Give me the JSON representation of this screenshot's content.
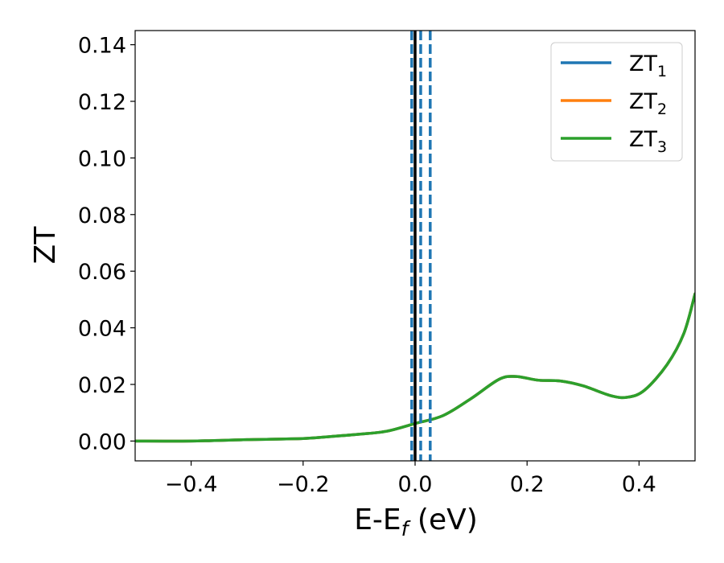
{
  "chart_data": {
    "type": "line",
    "title": "",
    "xlabel": {
      "main": "E-E",
      "sub": "f",
      "unit": " (eV)"
    },
    "ylabel": "ZT",
    "xlim": [
      -0.5,
      0.5
    ],
    "ylim": [
      -0.007,
      0.145
    ],
    "xticks": [
      -0.4,
      -0.2,
      0.0,
      0.2,
      0.4
    ],
    "xtick_labels": [
      "−0.4",
      "−0.2",
      "0.0",
      "0.2",
      "0.4"
    ],
    "yticks": [
      0.0,
      0.02,
      0.04,
      0.06,
      0.08,
      0.1,
      0.12,
      0.14
    ],
    "ytick_labels": [
      "0.00",
      "0.02",
      "0.04",
      "0.06",
      "0.08",
      "0.10",
      "0.12",
      "0.14"
    ],
    "grid": false,
    "legend_position": "top-right",
    "series": [
      {
        "name": "ZT",
        "sub": "1",
        "color": "#1f77b4",
        "points": [
          [
            -0.5,
            0.0
          ],
          [
            -0.4,
            0.0
          ],
          [
            -0.3,
            0.0005
          ],
          [
            -0.2,
            0.0009
          ],
          [
            -0.15,
            0.0016
          ],
          [
            -0.1,
            0.0024
          ],
          [
            -0.05,
            0.0035
          ],
          [
            0.0,
            0.0062
          ],
          [
            0.05,
            0.009
          ],
          [
            0.1,
            0.015
          ],
          [
            0.15,
            0.0218
          ],
          [
            0.18,
            0.0228
          ],
          [
            0.22,
            0.0215
          ],
          [
            0.26,
            0.0212
          ],
          [
            0.3,
            0.0195
          ],
          [
            0.35,
            0.016
          ],
          [
            0.38,
            0.0155
          ],
          [
            0.41,
            0.018
          ],
          [
            0.45,
            0.027
          ],
          [
            0.48,
            0.038
          ],
          [
            0.5,
            0.052
          ]
        ]
      },
      {
        "name": "ZT",
        "sub": "2",
        "color": "#ff7f0e",
        "points": [
          [
            -0.5,
            0.0
          ],
          [
            -0.4,
            0.0
          ],
          [
            -0.3,
            0.0005
          ],
          [
            -0.2,
            0.0009
          ],
          [
            -0.15,
            0.0016
          ],
          [
            -0.1,
            0.0024
          ],
          [
            -0.05,
            0.0035
          ],
          [
            0.0,
            0.0062
          ],
          [
            0.05,
            0.009
          ],
          [
            0.1,
            0.015
          ],
          [
            0.15,
            0.0218
          ],
          [
            0.18,
            0.0228
          ],
          [
            0.22,
            0.0215
          ],
          [
            0.26,
            0.0212
          ],
          [
            0.3,
            0.0195
          ],
          [
            0.35,
            0.016
          ],
          [
            0.38,
            0.0155
          ],
          [
            0.41,
            0.018
          ],
          [
            0.45,
            0.027
          ],
          [
            0.48,
            0.038
          ],
          [
            0.5,
            0.052
          ]
        ]
      },
      {
        "name": "ZT",
        "sub": "3",
        "color": "#2ca02c",
        "points": [
          [
            -0.5,
            0.0
          ],
          [
            -0.4,
            0.0
          ],
          [
            -0.3,
            0.0005
          ],
          [
            -0.2,
            0.0009
          ],
          [
            -0.15,
            0.0016
          ],
          [
            -0.1,
            0.0024
          ],
          [
            -0.05,
            0.0035
          ],
          [
            0.0,
            0.0062
          ],
          [
            0.05,
            0.009
          ],
          [
            0.1,
            0.015
          ],
          [
            0.15,
            0.0218
          ],
          [
            0.18,
            0.0228
          ],
          [
            0.22,
            0.0215
          ],
          [
            0.26,
            0.0212
          ],
          [
            0.3,
            0.0195
          ],
          [
            0.35,
            0.016
          ],
          [
            0.38,
            0.0155
          ],
          [
            0.41,
            0.018
          ],
          [
            0.45,
            0.027
          ],
          [
            0.48,
            0.038
          ],
          [
            0.5,
            0.052
          ]
        ]
      }
    ],
    "vlines": [
      {
        "x": 0.0,
        "color": "#000000",
        "style": "solid"
      },
      {
        "x": -0.006,
        "color": "#1f77b4",
        "style": "dashed"
      },
      {
        "x": 0.01,
        "color": "#1f77b4",
        "style": "dashed"
      },
      {
        "x": 0.027,
        "color": "#1f77b4",
        "style": "dashed"
      }
    ]
  }
}
